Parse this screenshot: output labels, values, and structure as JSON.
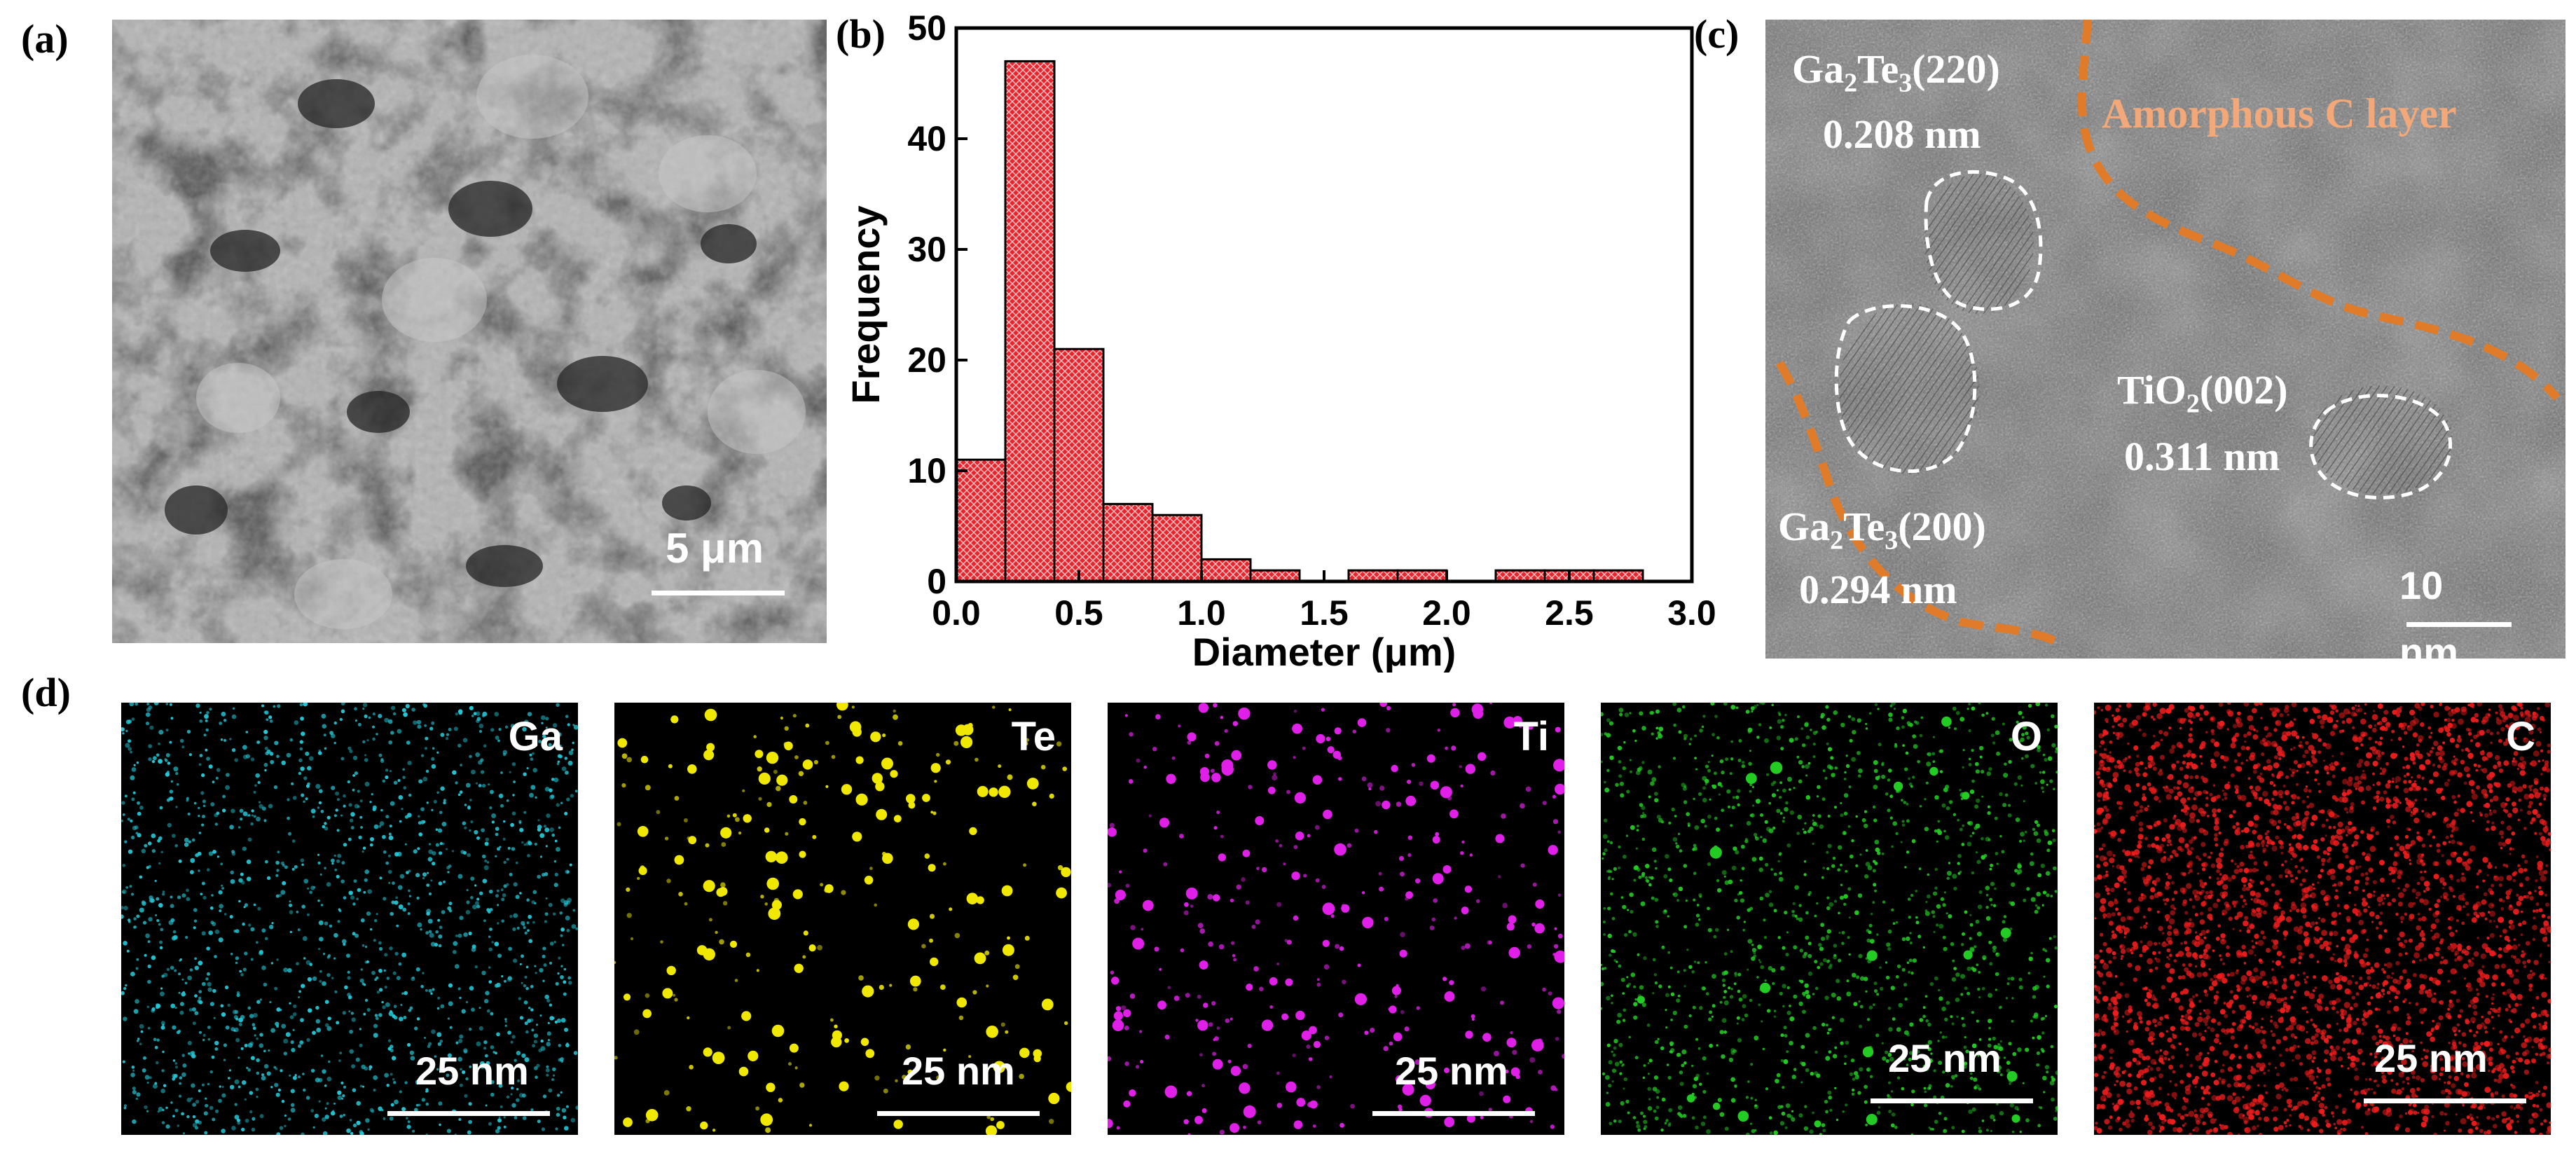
{
  "panels": {
    "a": {
      "label": "(a)",
      "scale_text": "5 μm"
    },
    "b": {
      "label": "(b)"
    },
    "c": {
      "label": "(c)",
      "annotations": {
        "g220_formula": "Ga",
        "g220_sub1": "2",
        "g220_mid": "Te",
        "g220_sub2": "3",
        "g220_plane": "(220)",
        "g220_d": "0.208 nm",
        "g200_formula": "Ga",
        "g200_sub1": "2",
        "g200_mid": "Te",
        "g200_sub2": "3",
        "g200_plane": "(200)",
        "g200_d": "0.294 nm",
        "tio2_formula": "TiO",
        "tio2_sub": "2",
        "tio2_plane": "(002)",
        "tio2_d": "0.311 nm",
        "amorphous": "Amorphous C layer"
      },
      "scale_text_line1": "10",
      "scale_text_line2": "nm",
      "colors": {
        "outline": "#e07b2a",
        "label": "#f2a878"
      }
    },
    "d": {
      "label": "(d)",
      "maps": [
        {
          "element": "Ga",
          "scale_text": "25 nm",
          "color": "#22c8d8"
        },
        {
          "element": "Te",
          "scale_text": "25 nm",
          "color": "#f0e800"
        },
        {
          "element": "Ti",
          "scale_text": "25 nm",
          "color": "#e020e8"
        },
        {
          "element": "O",
          "scale_text": "25 nm",
          "color": "#22cc22"
        },
        {
          "element": "C",
          "scale_text": "25 nm",
          "color": "#ee1c1c"
        }
      ]
    }
  },
  "chart_data": {
    "type": "bar",
    "bin_edges": [
      0.0,
      0.2,
      0.4,
      0.6,
      0.8,
      1.0,
      1.2,
      1.4,
      1.6,
      1.8,
      2.0,
      2.2,
      2.4,
      2.6,
      2.8
    ],
    "values": [
      11,
      47,
      21,
      7,
      6,
      2,
      1,
      0,
      1,
      1,
      0,
      1,
      1,
      1
    ],
    "xlabel": "Diameter (μm)",
    "ylabel": "Frequency",
    "xlim": [
      0.0,
      3.0
    ],
    "ylim": [
      0,
      50
    ],
    "xticks": [
      "0.0",
      "0.5",
      "1.0",
      "1.5",
      "2.0",
      "2.5",
      "3.0"
    ],
    "yticks": [
      "0",
      "10",
      "20",
      "30",
      "40",
      "50"
    ],
    "bar_color": "#e8242c",
    "grid": false
  }
}
